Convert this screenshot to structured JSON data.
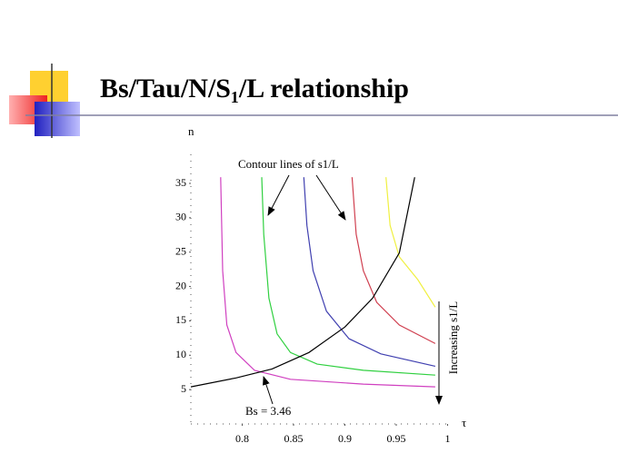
{
  "chart_data": {
    "type": "line",
    "title": "Bs/Tau/N/S₁/L relationship",
    "x_label": "τ",
    "y_label": "n",
    "xlim": [
      0.75,
      1
    ],
    "ylim": [
      0,
      42
    ],
    "xticks": [
      0.8,
      0.85,
      0.9,
      0.95,
      1
    ],
    "yticks": [
      5,
      10,
      15,
      20,
      25,
      30,
      35
    ],
    "annotations": [
      "Contour lines of s1/L",
      "Increasing s1/L",
      "Bs = 3.46"
    ],
    "series": [
      {
        "color": "#d040c0",
        "x": [
          0.779,
          0.781,
          0.785,
          0.794,
          0.812,
          0.847,
          0.918,
          0.988
        ],
        "values": [
          35.9,
          22.3,
          14.4,
          10.4,
          7.8,
          6.5,
          5.8,
          5.4
        ]
      },
      {
        "color": "#30d040",
        "x": [
          0.819,
          0.821,
          0.826,
          0.834,
          0.847,
          0.873,
          0.918,
          0.988
        ],
        "values": [
          35.9,
          27.6,
          18.3,
          13.1,
          10.4,
          8.7,
          7.8,
          7.1
        ]
      },
      {
        "color": "#4040b0",
        "x": [
          0.86,
          0.863,
          0.869,
          0.882,
          0.904,
          0.935,
          0.988
        ],
        "values": [
          35.9,
          28.9,
          22.3,
          16.4,
          12.4,
          10.2,
          8.4
        ]
      },
      {
        "color": "#d04050",
        "x": [
          0.907,
          0.911,
          0.918,
          0.931,
          0.953,
          0.988
        ],
        "values": [
          35.9,
          27.6,
          22.3,
          17.7,
          14.4,
          11.7
        ]
      },
      {
        "color": "#f0f040",
        "x": [
          0.94,
          0.944,
          0.953,
          0.971,
          0.988
        ],
        "values": [
          35.9,
          28.9,
          24.3,
          21.0,
          17.0
        ]
      },
      {
        "color": "#000000",
        "x": [
          0.75,
          0.794,
          0.829,
          0.865,
          0.9,
          0.927,
          0.953,
          0.968
        ],
        "values": [
          5.4,
          6.7,
          8.0,
          10.4,
          14.1,
          18.3,
          24.9,
          35.9
        ]
      }
    ]
  }
}
